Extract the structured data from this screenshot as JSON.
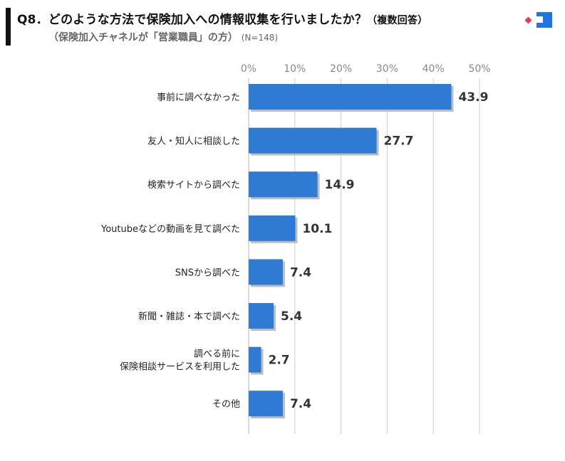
{
  "header": {
    "title": "Q8．どのような方法で保険加入への情報収集を行いましたか？",
    "title_note": "（複数回答）",
    "subtitle": "（保険加入チャネルが「営業職員」の方）",
    "n_count": "(N=148)"
  },
  "logo": {
    "icon": "brand-logo-icon",
    "colors": {
      "primary": "#1e74e8",
      "secondary": "#e8384f"
    }
  },
  "colors": {
    "bar": "#2f7bd3",
    "bar_shadow": "#bdbdbd",
    "grid": "#cccccc",
    "tick": "#888888",
    "value": "#333333",
    "category": "#222222"
  },
  "chart_data": {
    "type": "bar",
    "orientation": "horizontal",
    "x_ticks": [
      "0%",
      "10%",
      "20%",
      "30%",
      "40%",
      "50%"
    ],
    "xlim": [
      0,
      50
    ],
    "grid": true,
    "categories": [
      [
        "事前に調べなかった"
      ],
      [
        "友人・知人に相談した"
      ],
      [
        "検索サイトから調べた"
      ],
      [
        "Youtubeなどの動画を見て調べた"
      ],
      [
        "SNSから調べた"
      ],
      [
        "新聞・雑誌・本で調べた"
      ],
      [
        "調べる前に",
        "保険相談サービスを利用した"
      ],
      [
        "その他"
      ]
    ],
    "values": [
      43.9,
      27.7,
      14.9,
      10.1,
      7.4,
      5.4,
      2.7,
      7.4
    ],
    "value_labels": [
      "43.9",
      "27.7",
      "14.9",
      "10.1",
      "7.4",
      "5.4",
      "2.7",
      "7.4"
    ]
  }
}
